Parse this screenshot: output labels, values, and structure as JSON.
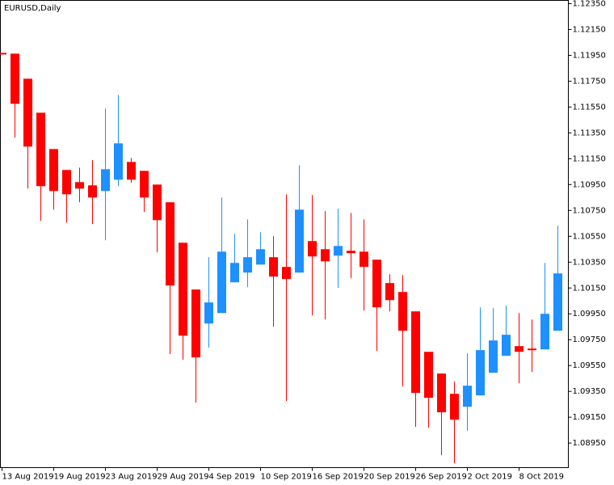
{
  "chart_data": {
    "type": "candlestick",
    "title": "EURUSD,Daily",
    "categories": [
      "13 Aug 2019",
      null,
      null,
      null,
      "19 Aug 2019",
      null,
      null,
      null,
      "23 Aug 2019",
      null,
      null,
      null,
      "29 Aug 2019",
      null,
      null,
      null,
      "4 Sep 2019",
      null,
      null,
      null,
      "10 Sep 2019",
      null,
      null,
      null,
      "16 Sep 2019",
      null,
      null,
      null,
      "20 Sep 2019",
      null,
      null,
      null,
      "26 Sep 2019",
      null,
      null,
      null,
      "2 Oct 2019",
      null,
      null,
      null,
      "8 Oct 2019",
      null,
      null,
      null
    ],
    "open": [
      1.11969,
      1.11963,
      1.11769,
      1.11506,
      1.11225,
      1.11063,
      1.10969,
      1.10944,
      1.109,
      1.10988,
      1.11125,
      1.11056,
      1.1095,
      1.10813,
      1.105,
      1.10138,
      1.09875,
      1.09956,
      1.10194,
      1.10269,
      1.10331,
      1.10388,
      1.10313,
      1.10269,
      1.10513,
      1.1045,
      1.104,
      1.10438,
      1.10431,
      1.10369,
      1.10188,
      1.10119,
      1.09969,
      1.09656,
      1.09488,
      1.09331,
      1.09231,
      1.09319,
      1.09494,
      1.09625,
      1.097,
      1.09681,
      1.09675,
      1.09819
    ],
    "high": [
      1.11969,
      1.11963,
      1.11769,
      1.11506,
      1.11225,
      1.11063,
      1.11081,
      1.11138,
      1.11538,
      1.11644,
      1.11156,
      1.11056,
      1.1095,
      1.10813,
      1.105,
      1.10138,
      1.10388,
      1.1085,
      1.10569,
      1.10681,
      1.10581,
      1.1055,
      1.10875,
      1.111,
      1.10869,
      1.10744,
      1.10763,
      1.10731,
      1.10681,
      1.10369,
      1.10256,
      1.1025,
      1.09969,
      1.09656,
      1.09488,
      1.09425,
      1.09644,
      1.1,
      1.09994,
      1.10013,
      1.09956,
      1.09906,
      1.10344,
      1.10631
    ],
    "low": [
      1.11963,
      1.11313,
      1.10919,
      1.10669,
      1.10756,
      1.10656,
      1.10813,
      1.10644,
      1.10519,
      1.10938,
      1.10963,
      1.10738,
      1.10425,
      1.09638,
      1.09594,
      1.09263,
      1.09688,
      1.09956,
      1.10194,
      1.10156,
      1.10331,
      1.0985,
      1.09275,
      1.10269,
      1.09938,
      1.09906,
      1.1015,
      1.10225,
      1.09975,
      1.09663,
      1.09969,
      1.09388,
      1.09075,
      1.09069,
      1.08856,
      1.08794,
      1.09044,
      1.09319,
      1.09494,
      1.09625,
      1.09413,
      1.095,
      1.09675,
      1.09819
    ],
    "close": [
      1.11963,
      1.11575,
      1.11244,
      1.10938,
      1.109,
      1.10875,
      1.10919,
      1.1085,
      1.11069,
      1.11269,
      1.10988,
      1.1085,
      1.10675,
      1.10169,
      1.09781,
      1.09613,
      1.10038,
      1.10431,
      1.10344,
      1.10388,
      1.1045,
      1.10238,
      1.10219,
      1.10756,
      1.10394,
      1.10356,
      1.10475,
      1.10419,
      1.10313,
      1.1,
      1.10056,
      1.09819,
      1.09338,
      1.093,
      1.09188,
      1.09131,
      1.09394,
      1.09669,
      1.09744,
      1.09788,
      1.09656,
      1.09669,
      1.0995,
      1.10263
    ],
    "up_color": "#1e90ff",
    "down_color": "#ff0000",
    "ylim": [
      1.0876,
      1.12375
    ],
    "yticks": [
      {
        "value": 1.1235,
        "label": "1.12350"
      },
      {
        "value": 1.1215,
        "label": "1.12150"
      },
      {
        "value": 1.1195,
        "label": "1.11950"
      },
      {
        "value": 1.1175,
        "label": "1.11750"
      },
      {
        "value": 1.1155,
        "label": "1.11550"
      },
      {
        "value": 1.1135,
        "label": "1.11350"
      },
      {
        "value": 1.1115,
        "label": "1.11150"
      },
      {
        "value": 1.1095,
        "label": "1.10950"
      },
      {
        "value": 1.1075,
        "label": "1.10750"
      },
      {
        "value": 1.1055,
        "label": "1.10550"
      },
      {
        "value": 1.1035,
        "label": "1.10350"
      },
      {
        "value": 1.1015,
        "label": "1.10150"
      },
      {
        "value": 1.0995,
        "label": "1.09950"
      },
      {
        "value": 1.0975,
        "label": "1.09750"
      },
      {
        "value": 1.0955,
        "label": "1.09550"
      },
      {
        "value": 1.0935,
        "label": "1.09350"
      },
      {
        "value": 1.0915,
        "label": "1.09150"
      },
      {
        "value": 1.0895,
        "label": "1.08950"
      }
    ],
    "grid": false
  }
}
